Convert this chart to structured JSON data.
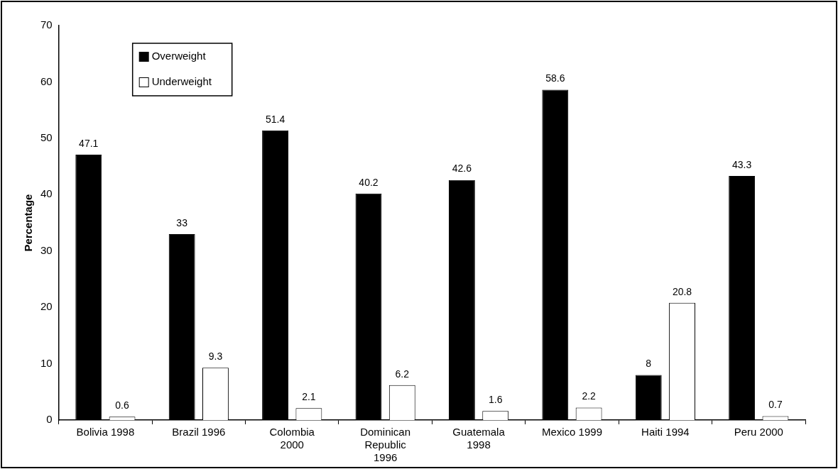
{
  "chart_data": {
    "type": "bar",
    "ylabel": "Percentage",
    "categories": [
      "Bolivia 1998",
      "Brazil 1996",
      "Colombia 2000",
      "Dominican Republic 1996",
      "Guatemala 1998",
      "Mexico 1999",
      "Haiti 1994",
      "Peru 2000"
    ],
    "series": [
      {
        "name": "Overweight",
        "color": "#000000",
        "values": [
          47.1,
          33,
          51.4,
          40.2,
          42.6,
          58.6,
          8,
          43.3
        ]
      },
      {
        "name": "Underweight",
        "color": "#ffffff",
        "values": [
          0.6,
          9.3,
          2.1,
          6.2,
          1.6,
          2.2,
          20.8,
          0.7
        ]
      }
    ],
    "ylim": [
      0,
      70
    ],
    "yticks": [
      0,
      10,
      20,
      30,
      40,
      50,
      60,
      70
    ],
    "grid": false,
    "legend": "top left",
    "data_labels": true
  }
}
